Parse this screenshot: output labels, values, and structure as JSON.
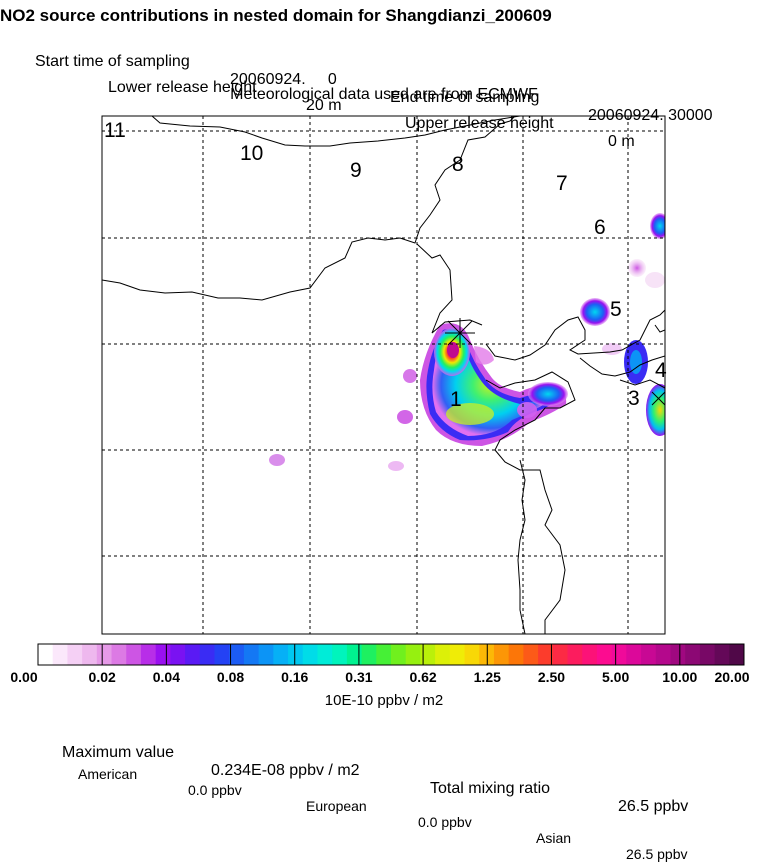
{
  "title": "NO2 source contributions in nested domain for Shangdianzi_200609",
  "sampling": {
    "start_label": "Start time of sampling",
    "start_value": "20060924.     0",
    "end_label": "End time of sampling",
    "end_value": "20060924. 30000"
  },
  "release": {
    "lower_label": "Lower release height",
    "lower_value": "20 m",
    "upper_label": "Upper release height",
    "upper_value": "0 m"
  },
  "met_text": "Meteorological data used are from ECMWF",
  "map": {
    "region_labels": [
      "11",
      "10",
      "9",
      "8",
      "7",
      "6",
      "5",
      "4",
      "3",
      "1"
    ]
  },
  "colorbar": {
    "tick_labels": [
      "0.00",
      "0.02",
      "0.04",
      "0.08",
      "0.16",
      "0.31",
      "0.62",
      "1.25",
      "2.50",
      "5.00",
      "10.00",
      "20.00"
    ],
    "colors": [
      "#ffffff",
      "#fbe8fb",
      "#f5d0f5",
      "#eeb8ee",
      "#e69ae8",
      "#dc7ae4",
      "#cd55e4",
      "#b82ee8",
      "#9a10f0",
      "#7a12f2",
      "#5a1af4",
      "#3a2cf4",
      "#2442f4",
      "#1c5cf4",
      "#1478f4",
      "#0c94f6",
      "#06b0f6",
      "#00c8f0",
      "#00dce8",
      "#00ecd8",
      "#00f4bc",
      "#00f290",
      "#1ef060",
      "#46f036",
      "#70f01e",
      "#96f010",
      "#baf00a",
      "#dcf008",
      "#f0ec06",
      "#f8d806",
      "#fcb806",
      "#fc9606",
      "#fc7608",
      "#fc5a18",
      "#fc3c2c",
      "#fc2a44",
      "#fc1c5e",
      "#fc1278",
      "#fc0c90",
      "#f00a9a",
      "#dc089a",
      "#c80894",
      "#b4088c",
      "#a00880",
      "#8c0874",
      "#780866",
      "#640858",
      "#500848"
    ],
    "units": "10E-10 ppbv / m2"
  },
  "stats": {
    "max_label": "Maximum value",
    "max_value": "0.234E-08 ppbv / m2",
    "total_label": "Total mixing ratio",
    "total_value": "26.5 ppbv",
    "american_label": "American",
    "american_value": "0.0 ppbv",
    "european_label": "European",
    "european_value": "0.0 ppbv",
    "asian_label": "Asian",
    "asian_value": "26.5 ppbv"
  }
}
